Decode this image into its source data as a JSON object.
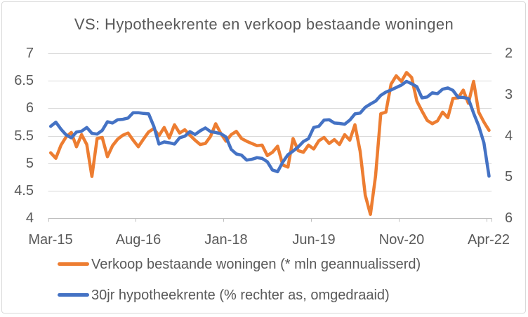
{
  "colors": {
    "orange": "#ED7D31",
    "blue": "#4472C4",
    "gridline": "#D9D9D9",
    "axis_line": "#BFBFBF",
    "text": "#595959",
    "border": "#D9D9D9"
  },
  "chart_data": {
    "type": "line",
    "title": "VS: Hypotheekrente en verkoop bestaande woningen",
    "grid": true,
    "legend_position": "bottom",
    "x_tick_labels": [
      "Mar-15",
      "Aug-16",
      "Jan-18",
      "Jun-19",
      "Nov-20",
      "Apr-22"
    ],
    "x_tick_interval_months": 17,
    "axis_left": {
      "min": 4,
      "max": 7,
      "ticks": [
        "7",
        "6.5",
        "6",
        "5.5",
        "5",
        "4.5",
        "4"
      ]
    },
    "axis_right": {
      "min": 2,
      "max": 6,
      "inverted": true,
      "ticks": [
        "2",
        "3",
        "4",
        "5",
        "6"
      ]
    },
    "x": [
      "Mar-15",
      "Apr-15",
      "May-15",
      "Jun-15",
      "Jul-15",
      "Aug-15",
      "Sep-15",
      "Oct-15",
      "Nov-15",
      "Dec-15",
      "Jan-16",
      "Feb-16",
      "Mar-16",
      "Apr-16",
      "May-16",
      "Jun-16",
      "Jul-16",
      "Aug-16",
      "Sep-16",
      "Oct-16",
      "Nov-16",
      "Dec-16",
      "Jan-17",
      "Feb-17",
      "Mar-17",
      "Apr-17",
      "May-17",
      "Jun-17",
      "Jul-17",
      "Aug-17",
      "Sep-17",
      "Oct-17",
      "Nov-17",
      "Dec-17",
      "Jan-18",
      "Feb-18",
      "Mar-18",
      "Apr-18",
      "May-18",
      "Jun-18",
      "Jul-18",
      "Aug-18",
      "Sep-18",
      "Oct-18",
      "Nov-18",
      "Dec-18",
      "Jan-19",
      "Feb-19",
      "Mar-19",
      "Apr-19",
      "May-19",
      "Jun-19",
      "Jul-19",
      "Aug-19",
      "Sep-19",
      "Oct-19",
      "Nov-19",
      "Dec-19",
      "Jan-20",
      "Feb-20",
      "Mar-20",
      "Apr-20",
      "May-20",
      "Jun-20",
      "Jul-20",
      "Aug-20",
      "Sep-20",
      "Oct-20",
      "Nov-20",
      "Dec-20",
      "Jan-21",
      "Feb-21",
      "Mar-21",
      "Apr-21",
      "May-21",
      "Jun-21",
      "Jul-21",
      "Aug-21",
      "Sep-21",
      "Oct-21",
      "Nov-21",
      "Dec-21",
      "Jan-22",
      "Feb-22",
      "Mar-22",
      "Apr-22"
    ],
    "series": [
      {
        "id": "verkoop",
        "name": "Verkoop bestaande woningen (* mln geannualisserd)",
        "axis": "left",
        "color": "#ED7D31",
        "values": [
          5.19,
          5.09,
          5.33,
          5.48,
          5.56,
          5.3,
          5.52,
          5.34,
          4.76,
          5.45,
          5.47,
          5.12,
          5.32,
          5.44,
          5.51,
          5.55,
          5.42,
          5.3,
          5.44,
          5.57,
          5.63,
          5.5,
          5.65,
          5.46,
          5.7,
          5.55,
          5.61,
          5.51,
          5.42,
          5.34,
          5.36,
          5.49,
          5.72,
          5.54,
          5.4,
          5.52,
          5.58,
          5.45,
          5.4,
          5.36,
          5.32,
          5.33,
          5.14,
          5.2,
          5.31,
          4.97,
          4.93,
          5.45,
          5.23,
          5.2,
          5.33,
          5.26,
          5.41,
          5.47,
          5.36,
          5.43,
          5.34,
          5.52,
          5.42,
          5.7,
          5.22,
          4.42,
          4.07,
          4.77,
          5.9,
          5.93,
          6.44,
          6.59,
          6.49,
          6.65,
          6.56,
          6.13,
          5.95,
          5.78,
          5.72,
          5.77,
          5.93,
          5.83,
          6.18,
          6.19,
          6.33,
          6.09,
          6.49,
          5.93,
          5.75,
          5.6
        ]
      },
      {
        "id": "rente",
        "name": "30jr hypotheekrente (% rechter as, omgedraaid)",
        "axis": "right",
        "color": "#4472C4",
        "values": [
          3.77,
          3.67,
          3.84,
          3.98,
          4.05,
          3.91,
          3.89,
          3.8,
          3.94,
          3.96,
          3.87,
          3.66,
          3.69,
          3.61,
          3.6,
          3.57,
          3.44,
          3.44,
          3.46,
          3.47,
          3.77,
          4.2,
          4.15,
          4.17,
          4.2,
          4.05,
          4.01,
          3.9,
          3.97,
          3.88,
          3.81,
          3.9,
          3.92,
          3.95,
          4.03,
          4.33,
          4.44,
          4.47,
          4.59,
          4.57,
          4.53,
          4.55,
          4.63,
          4.83,
          4.87,
          4.64,
          4.46,
          4.37,
          4.27,
          4.14,
          4.07,
          3.8,
          3.77,
          3.62,
          3.61,
          3.69,
          3.7,
          3.72,
          3.62,
          3.47,
          3.45,
          3.31,
          3.23,
          3.16,
          3.02,
          2.94,
          2.89,
          2.83,
          2.77,
          2.68,
          2.74,
          2.81,
          3.08,
          3.06,
          2.96,
          2.98,
          2.87,
          2.84,
          2.9,
          3.07,
          3.07,
          3.1,
          3.45,
          3.76,
          4.17,
          4.98
        ]
      }
    ]
  }
}
